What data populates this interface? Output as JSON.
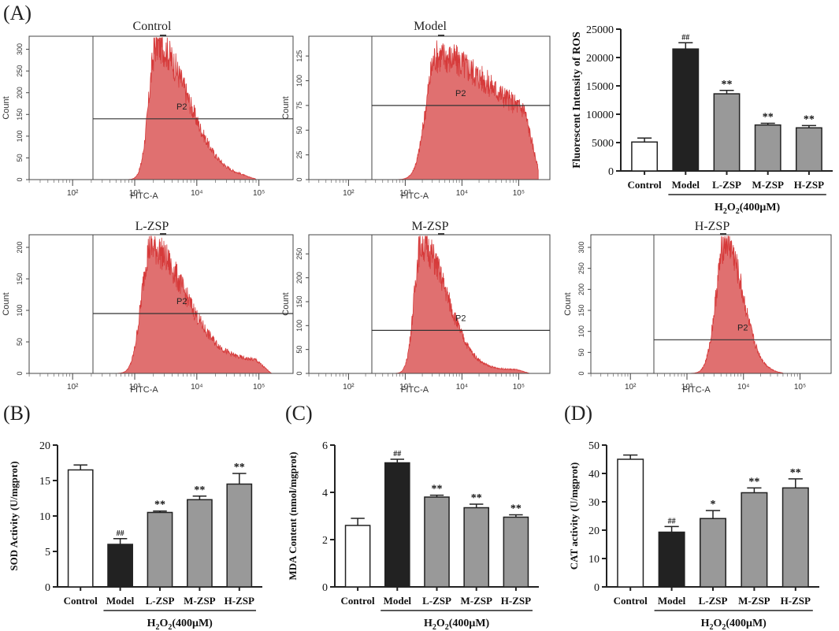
{
  "panel_labels": {
    "A": "(A)",
    "B": "(B)",
    "C": "(C)",
    "D": "(D)"
  },
  "colors": {
    "histogram_fill": "#e07070",
    "histogram_stroke": "#d63a3a",
    "control_bar": "#ffffff",
    "model_bar": "#222222",
    "treatment_bar": "#999999",
    "axis": "#222222"
  },
  "treatment_label": "H2O2(400μM)",
  "chart_data": [
    {
      "id": "flow-control",
      "type": "histogram",
      "title": "Control",
      "xlabel": "FITC-A",
      "ylabel": "Count",
      "xticks": [
        "10²",
        "10³",
        "10⁴",
        "10⁵"
      ],
      "yticks": [
        0,
        50,
        100,
        150,
        200,
        250,
        300
      ],
      "ymax": 330,
      "gate_label": "P2",
      "gate_level": 140,
      "series": {
        "name": "Control",
        "peak_log": 3.35,
        "peak_count": 310,
        "spread_left": 0.12,
        "spread_right": 0.5,
        "tail_level": 6,
        "tail_end": 4.95
      }
    },
    {
      "id": "flow-model",
      "type": "histogram",
      "title": "Model",
      "xlabel": "FITC-A",
      "ylabel": "Count",
      "xticks": [
        "10²",
        "10³",
        "10⁴",
        "10⁵"
      ],
      "yticks": [
        0,
        25,
        50,
        75,
        100,
        125
      ],
      "ymax": 145,
      "gate_label": "P2",
      "gate_level": 75,
      "series": {
        "name": "Model",
        "peak_log": 3.55,
        "peak_count": 125,
        "spread_left": 0.18,
        "spread_right": 0.9,
        "tail_level": 55,
        "tail_end": 5.35
      }
    },
    {
      "id": "flow-lzsp",
      "type": "histogram",
      "title": "L-ZSP",
      "xlabel": "FITC-A",
      "ylabel": "Count",
      "xticks": [
        "10²",
        "10³",
        "10⁴",
        "10⁵"
      ],
      "yticks": [
        0,
        50,
        100,
        150,
        200
      ],
      "ymax": 220,
      "gate_label": "P2",
      "gate_level": 95,
      "series": {
        "name": "L-ZSP",
        "peak_log": 3.25,
        "peak_count": 200,
        "spread_left": 0.14,
        "spread_right": 0.55,
        "tail_level": 20,
        "tail_end": 5.2
      }
    },
    {
      "id": "flow-mzsp",
      "type": "histogram",
      "title": "M-ZSP",
      "xlabel": "FITC-A",
      "ylabel": "Count",
      "xticks": [
        "10²",
        "10³",
        "10⁴",
        "10⁵"
      ],
      "yticks": [
        0,
        50,
        100,
        150,
        200,
        250
      ],
      "ymax": 290,
      "gate_label": "P2",
      "gate_level": 90,
      "series": {
        "name": "M-ZSP",
        "peak_log": 3.28,
        "peak_count": 270,
        "spread_left": 0.12,
        "spread_right": 0.45,
        "tail_level": 8,
        "tail_end": 5.2
      }
    },
    {
      "id": "flow-hzsp",
      "type": "histogram",
      "title": "H-ZSP",
      "xlabel": "FITC-A",
      "ylabel": "Count",
      "xticks": [
        "10²",
        "10³",
        "10⁴",
        "10⁵"
      ],
      "yticks": [
        0,
        50,
        100,
        150,
        200,
        250,
        300
      ],
      "ymax": 330,
      "gate_label": "P2",
      "gate_level": 80,
      "series": {
        "name": "H-ZSP",
        "peak_log": 3.68,
        "peak_count": 315,
        "spread_left": 0.16,
        "spread_right": 0.3,
        "tail_level": 3,
        "tail_end": 4.7
      }
    },
    {
      "id": "ros",
      "type": "bar",
      "title": "",
      "ylabel": "Fluorescent  Intensity of ROS",
      "categories": [
        "Control",
        "Model",
        "L-ZSP",
        "M-ZSP",
        "H-ZSP"
      ],
      "values": [
        5100,
        21500,
        13600,
        8100,
        7600
      ],
      "errors": [
        700,
        1100,
        600,
        300,
        400
      ],
      "annotations": [
        "",
        "##",
        "**",
        "**",
        "**"
      ],
      "ylim": [
        0,
        25000
      ],
      "yticks": [
        0,
        5000,
        10000,
        15000,
        20000,
        25000
      ]
    },
    {
      "id": "sod",
      "type": "bar",
      "title": "",
      "ylabel": "SOD Activity (U/mgprot)",
      "categories": [
        "Control",
        "Model",
        "L-ZSP",
        "M-ZSP",
        "H-ZSP"
      ],
      "values": [
        16.5,
        6.0,
        10.5,
        12.3,
        14.5
      ],
      "errors": [
        0.7,
        0.8,
        0.2,
        0.5,
        1.5
      ],
      "annotations": [
        "",
        "##",
        "**",
        "**",
        "**"
      ],
      "ylim": [
        0,
        20
      ],
      "yticks": [
        0,
        5,
        10,
        15,
        20
      ]
    },
    {
      "id": "mda",
      "type": "bar",
      "title": "",
      "ylabel": "MDA Content (nmol/mgprot)",
      "categories": [
        "Control",
        "Model",
        "L-ZSP",
        "M-ZSP",
        "H-ZSP"
      ],
      "values": [
        2.6,
        5.25,
        3.8,
        3.35,
        2.95
      ],
      "errors": [
        0.3,
        0.15,
        0.08,
        0.15,
        0.1
      ],
      "annotations": [
        "",
        "##",
        "**",
        "**",
        "**"
      ],
      "ylim": [
        0,
        6
      ],
      "yticks": [
        0,
        2,
        4,
        6
      ]
    },
    {
      "id": "cat",
      "type": "bar",
      "title": "",
      "ylabel": "CAT activity (U/mgprot)",
      "categories": [
        "Control",
        "Model",
        "L-ZSP",
        "M-ZSP",
        "H-ZSP"
      ],
      "values": [
        45.0,
        19.3,
        24.1,
        33.2,
        34.9
      ],
      "errors": [
        1.5,
        2.0,
        2.8,
        1.7,
        3.2
      ],
      "annotations": [
        "",
        "##",
        "*",
        "**",
        "**"
      ],
      "ylim": [
        0,
        50
      ],
      "yticks": [
        0,
        10,
        20,
        30,
        40,
        50
      ]
    }
  ]
}
